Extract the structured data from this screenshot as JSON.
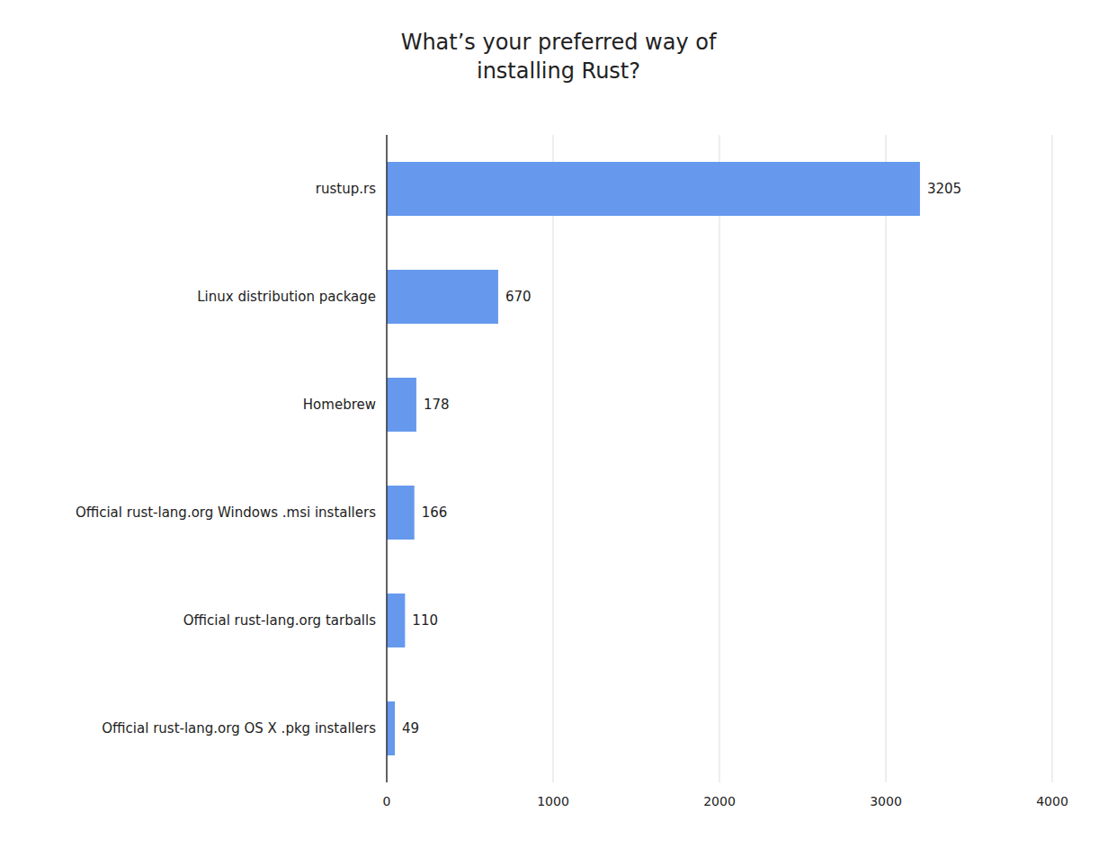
{
  "chart_data": {
    "type": "bar",
    "orientation": "horizontal",
    "title": "What’s your preferred way of\ninstalling Rust?",
    "categories": [
      "rustup.rs",
      "Linux distribution package",
      "Homebrew",
      "Official rust-lang.org Windows .msi installers",
      "Official rust-lang.org tarballs",
      "Official rust-lang.org OS X .pkg installers"
    ],
    "values": [
      3205,
      670,
      178,
      166,
      110,
      49
    ],
    "color": "#6699ee",
    "xlim": [
      0,
      4000
    ],
    "xticks": [
      0,
      1000,
      2000,
      3000,
      4000
    ],
    "grid": true,
    "data_labels": true
  }
}
